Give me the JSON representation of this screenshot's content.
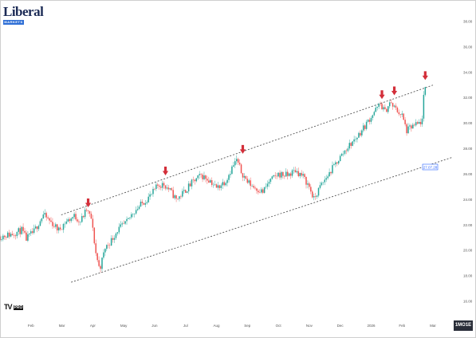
{
  "branding": {
    "logo_word": "Liberal",
    "logo_sub": "MARKETS",
    "platform": "TV",
    "platform_tag": "PRO"
  },
  "colors": {
    "up": "#26a69a",
    "down": "#ef5350",
    "arrow": "#d32f3a",
    "channel": "#555555",
    "price_tag": "#2962ff"
  },
  "timezone_button": "1MO1E",
  "price_tag": "27.07.28",
  "chart_data": {
    "type": "candlestick",
    "title": "",
    "xlabel": "",
    "ylabel": "",
    "ylim": [
      15,
      39
    ],
    "y_ticks": [
      16,
      18,
      20,
      22,
      24,
      26,
      28,
      30,
      32,
      34,
      36,
      38
    ],
    "y_tick_labels": [
      "16.00",
      "18.00",
      "20.00",
      "22.00",
      "24.00",
      "26.00",
      "28.00",
      "30.00",
      "32.00",
      "34.00",
      "36.00",
      "38.00"
    ],
    "x_range": [
      0,
      14.85
    ],
    "x_ticks": [
      1,
      2,
      3,
      4,
      5,
      6,
      7,
      8,
      9,
      10,
      11,
      12,
      13,
      14
    ],
    "x_tick_labels": [
      "Feb",
      "Mar",
      "Apr",
      "May",
      "Jun",
      "Jul",
      "Aug",
      "Sep",
      "Oct",
      "Nov",
      "Dec",
      "2026",
      "Feb",
      "Mar"
    ],
    "price_path": [
      [
        0.0,
        21.1
      ],
      [
        0.4,
        21.3
      ],
      [
        0.7,
        21.6
      ],
      [
        0.85,
        20.9
      ],
      [
        1.1,
        21.5
      ],
      [
        1.4,
        22.8
      ],
      [
        1.7,
        22.1
      ],
      [
        1.9,
        21.6
      ],
      [
        2.1,
        22.2
      ],
      [
        2.4,
        22.7
      ],
      [
        2.6,
        22.3
      ],
      [
        2.8,
        23.2
      ],
      [
        2.95,
        22.5
      ],
      [
        3.1,
        19.8
      ],
      [
        3.22,
        18.5
      ],
      [
        3.4,
        20.2
      ],
      [
        3.6,
        20.8
      ],
      [
        3.8,
        21.6
      ],
      [
        4.1,
        22.2
      ],
      [
        4.3,
        23.0
      ],
      [
        4.6,
        23.7
      ],
      [
        4.9,
        24.4
      ],
      [
        5.1,
        25.1
      ],
      [
        5.3,
        25.2
      ],
      [
        5.5,
        24.7
      ],
      [
        5.7,
        24.0
      ],
      [
        5.95,
        24.6
      ],
      [
        6.2,
        25.3
      ],
      [
        6.5,
        25.9
      ],
      [
        6.8,
        25.5
      ],
      [
        7.0,
        24.9
      ],
      [
        7.3,
        25.5
      ],
      [
        7.5,
        26.5
      ],
      [
        7.65,
        27.1
      ],
      [
        7.8,
        26.2
      ],
      [
        8.0,
        25.4
      ],
      [
        8.2,
        25.0
      ],
      [
        8.5,
        24.6
      ],
      [
        8.7,
        25.4
      ],
      [
        9.0,
        26.0
      ],
      [
        9.3,
        25.9
      ],
      [
        9.55,
        26.3
      ],
      [
        9.8,
        25.8
      ],
      [
        10.0,
        25.0
      ],
      [
        10.15,
        24.0
      ],
      [
        10.35,
        25.0
      ],
      [
        10.6,
        25.9
      ],
      [
        10.9,
        27.0
      ],
      [
        11.2,
        28.0
      ],
      [
        11.5,
        28.8
      ],
      [
        11.8,
        29.8
      ],
      [
        12.1,
        30.9
      ],
      [
        12.3,
        31.5
      ],
      [
        12.45,
        30.9
      ],
      [
        12.6,
        31.6
      ],
      [
        12.8,
        31.1
      ],
      [
        13.0,
        30.6
      ],
      [
        13.15,
        29.4
      ],
      [
        13.3,
        29.7
      ],
      [
        13.5,
        29.9
      ],
      [
        13.65,
        30.2
      ],
      [
        13.72,
        32.7
      ],
      [
        13.78,
        32.9
      ]
    ],
    "channel": {
      "upper": [
        [
          1.98,
          22.8
        ],
        [
          14.0,
          33.0
        ]
      ],
      "lower": [
        [
          2.3,
          17.5
        ],
        [
          14.6,
          27.3
        ]
      ]
    },
    "arrow_markers": [
      {
        "x": 2.85,
        "y": 23.4
      },
      {
        "x": 5.35,
        "y": 25.9
      },
      {
        "x": 7.85,
        "y": 27.6
      },
      {
        "x": 12.35,
        "y": 31.9
      },
      {
        "x": 12.75,
        "y": 32.2
      },
      {
        "x": 13.75,
        "y": 33.4
      }
    ]
  }
}
